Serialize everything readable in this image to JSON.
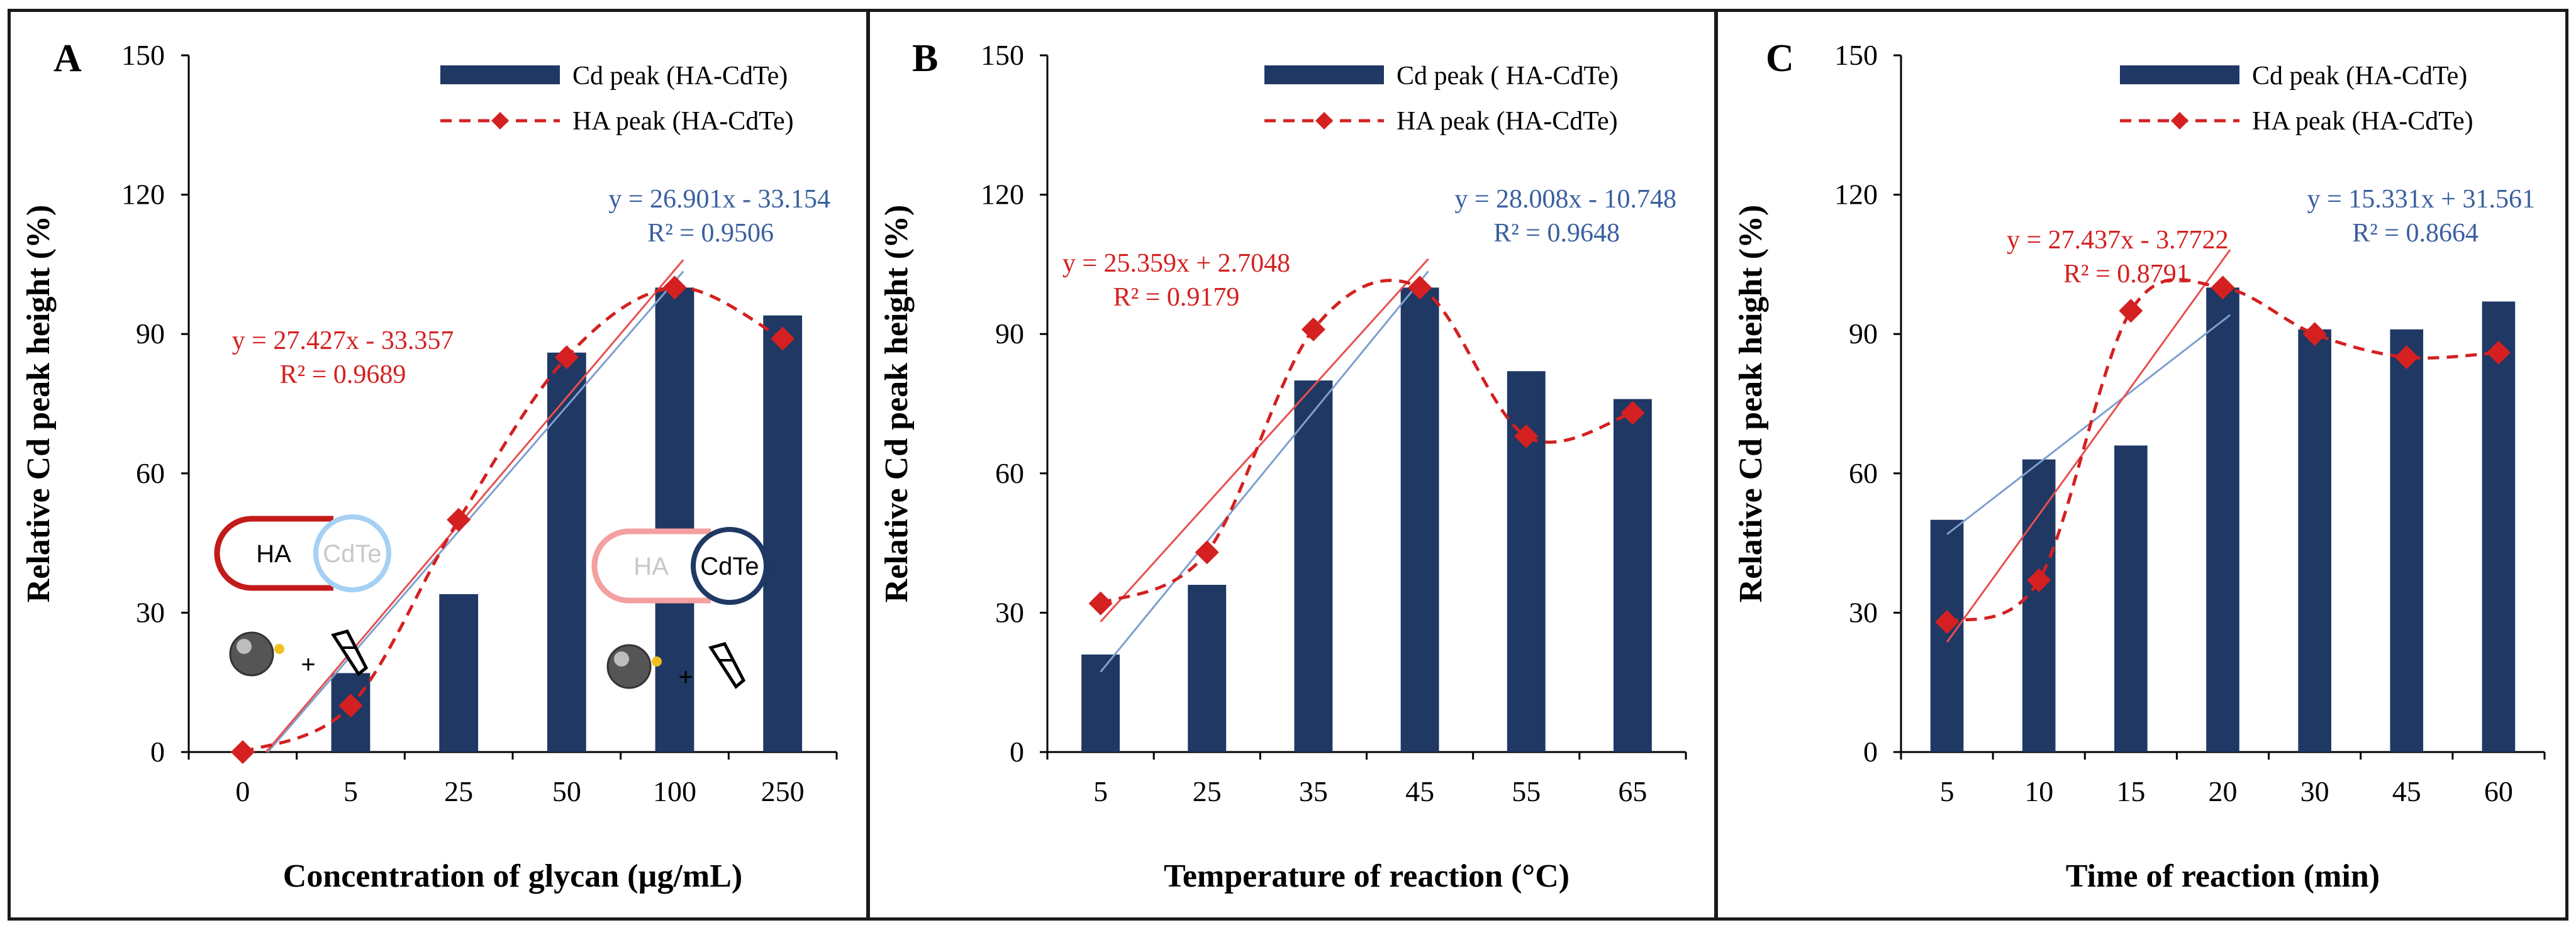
{
  "colors": {
    "bar": "#1f3864",
    "ha_line": "#d42020",
    "cd_trend": "#7f9fcf",
    "ha_trend": "#e85050",
    "eq_blue": "#3a5fa0",
    "eq_red": "#d42020"
  },
  "chart_data": [
    {
      "type": "bar",
      "panel": "A",
      "title": "",
      "xlabel": "Concentration of glycan (µg/mL)",
      "ylabel": "Relative Cd peak height  (%)",
      "ylim": [
        0,
        150
      ],
      "yticks": [
        "0",
        "30",
        "60",
        "90",
        "120",
        "150"
      ],
      "categories": [
        "0",
        "5",
        "25",
        "50",
        "100",
        "250"
      ],
      "series": [
        {
          "name": "Cd peak (HA-CdTe)",
          "kind": "bar",
          "values": [
            0,
            17,
            34,
            86,
            100,
            94
          ]
        },
        {
          "name": "HA peak (HA-CdTe)",
          "kind": "line",
          "values": [
            0,
            10,
            50,
            85,
            100,
            89
          ]
        }
      ],
      "trendlines": [
        {
          "label": "y = 26.901x - 33.154",
          "r2": "R² = 0.9506",
          "series": "Cd peak (HA-CdTe)",
          "from_category": 0,
          "to_category": 4,
          "slope": 26.901,
          "intercept": -33.154
        },
        {
          "label": "y = 27.427x - 33.357",
          "r2": "R² = 0.9689",
          "series": "HA peak (HA-CdTe)",
          "from_category": 0,
          "to_category": 4,
          "slope": 27.427,
          "intercept": -33.357
        }
      ],
      "insets": [
        {
          "left_label": "HA",
          "right_label": "CdTe",
          "state": "free HA"
        },
        {
          "left_label": "HA",
          "right_label": "CdTe",
          "state": "free CdTe"
        }
      ]
    },
    {
      "type": "bar",
      "panel": "B",
      "title": "",
      "xlabel": "Temperature  of reaction (°C)",
      "ylabel": "Relative Cd peak height  (%)",
      "ylim": [
        0,
        150
      ],
      "yticks": [
        "0",
        "30",
        "60",
        "90",
        "120",
        "150"
      ],
      "categories": [
        "5",
        "25",
        "35",
        "45",
        "55",
        "65"
      ],
      "series": [
        {
          "name": "Cd peak ( HA-CdTe)",
          "kind": "bar",
          "values": [
            21,
            36,
            80,
            100,
            82,
            76
          ]
        },
        {
          "name": "HA peak (HA-CdTe)",
          "kind": "line",
          "values": [
            32,
            43,
            91,
            100,
            68,
            73
          ]
        }
      ],
      "trendlines": [
        {
          "label": "y = 28.008x - 10.748",
          "r2": "R² = 0.9648",
          "series": "Cd peak ( HA-CdTe)",
          "from_category": 0,
          "to_category": 3,
          "slope": 28.008,
          "intercept": -10.748
        },
        {
          "label": "y = 25.359x + 2.7048",
          "r2": "R² = 0.9179",
          "series": "HA peak (HA-CdTe)",
          "from_category": 0,
          "to_category": 3,
          "slope": 25.359,
          "intercept": 2.7048
        }
      ]
    },
    {
      "type": "bar",
      "panel": "C",
      "title": "",
      "xlabel": "Time of reaction (min)",
      "ylabel": "Relative Cd peak height  (%)",
      "ylim": [
        0,
        150
      ],
      "yticks": [
        "0",
        "30",
        "60",
        "90",
        "120",
        "150"
      ],
      "categories": [
        "5",
        "10",
        "15",
        "20",
        "30",
        "45",
        "60"
      ],
      "series": [
        {
          "name": "Cd peak (HA-CdTe)",
          "kind": "bar",
          "values": [
            50,
            63,
            66,
            100,
            91,
            91,
            97
          ]
        },
        {
          "name": "HA peak (HA-CdTe)",
          "kind": "line",
          "values": [
            28,
            37,
            95,
            100,
            90,
            85,
            86
          ]
        }
      ],
      "trendlines": [
        {
          "label": "y = 15.331x + 31.561",
          "r2": "R² = 0.8664",
          "series": "Cd peak (HA-CdTe)",
          "from_category": 0,
          "to_category": 3,
          "slope": 15.331,
          "intercept": 31.561
        },
        {
          "label": "y = 27.437x - 3.7722",
          "r2": "R² = 0.8791",
          "series": "HA peak (HA-CdTe)",
          "from_category": 0,
          "to_category": 3,
          "slope": 27.437,
          "intercept": -3.7722
        }
      ]
    }
  ]
}
